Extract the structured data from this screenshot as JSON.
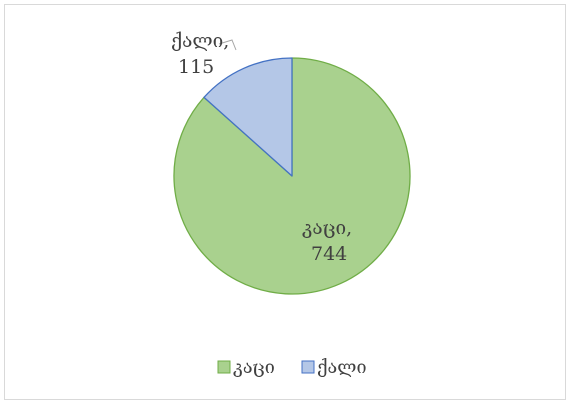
{
  "chart_data": {
    "type": "pie",
    "categories": [
      "კაცი",
      "ქალი"
    ],
    "values": [
      744,
      115
    ],
    "data_labels": [
      {
        "name": "კაცი,",
        "value": "744"
      },
      {
        "name": "ქალი,",
        "value": "115"
      }
    ],
    "colors": [
      "#a9d18e",
      "#b4c7e7"
    ],
    "border_colors": [
      "#70ad47",
      "#4472c4"
    ],
    "legend": {
      "position": "bottom",
      "entries": [
        "კაცი",
        "ქალი"
      ]
    }
  }
}
